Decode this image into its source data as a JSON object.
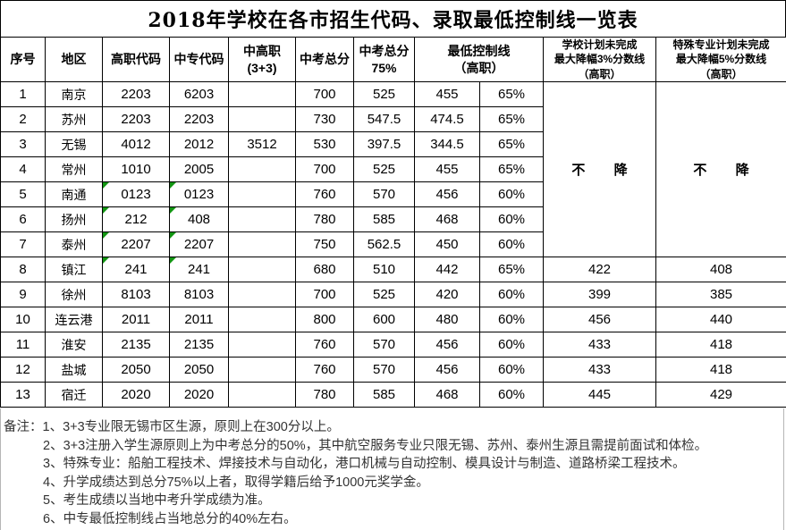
{
  "page": {
    "background": "#ffffff",
    "grid_border_color": "#000000",
    "code_flag_triangle_color": "#129612",
    "notes_text_color": "#333333"
  },
  "title": "2018年学校在各市招生代码、录取最低控制线一览表",
  "table": {
    "headers": {
      "no": "序号",
      "region": "地区",
      "gz_code": "高职代码",
      "zz_code": "中专代码",
      "zgz": "中高职\n(3+3)",
      "total": "中考总分",
      "total75": "中考总分\n75%",
      "min_line": "最低控制线\n（高职）",
      "drop3": "学校计划未完成\n最大降幅3%分数线\n（高职）",
      "drop5": "特殊专业计划未完成\n最大降幅5%分数线\n（高职）"
    },
    "merged_no_drop": {
      "row_span": 7,
      "drop3": "不 降",
      "drop5": "不 降"
    },
    "rows": [
      {
        "no": "1",
        "region": "南京",
        "gz_code": "2203",
        "zz_code": "6203",
        "zgz": "",
        "total": "700",
        "total75": "525",
        "min_line": "455",
        "min_pct": "65%",
        "drop3": "",
        "drop5": "",
        "code_marked": false
      },
      {
        "no": "2",
        "region": "苏州",
        "gz_code": "2203",
        "zz_code": "2203",
        "zgz": "",
        "total": "730",
        "total75": "547.5",
        "min_line": "474.5",
        "min_pct": "65%",
        "drop3": "",
        "drop5": "",
        "code_marked": false
      },
      {
        "no": "3",
        "region": "无锡",
        "gz_code": "4012",
        "zz_code": "2012",
        "zgz": "3512",
        "total": "530",
        "total75": "397.5",
        "min_line": "344.5",
        "min_pct": "65%",
        "drop3": "",
        "drop5": "",
        "code_marked": false
      },
      {
        "no": "4",
        "region": "常州",
        "gz_code": "1010",
        "zz_code": "2005",
        "zgz": "",
        "total": "700",
        "total75": "525",
        "min_line": "455",
        "min_pct": "65%",
        "drop3": "",
        "drop5": "",
        "code_marked": false
      },
      {
        "no": "5",
        "region": "南通",
        "gz_code": "0123",
        "zz_code": "0123",
        "zgz": "",
        "total": "760",
        "total75": "570",
        "min_line": "456",
        "min_pct": "60%",
        "drop3": "",
        "drop5": "",
        "code_marked": true
      },
      {
        "no": "6",
        "region": "扬州",
        "gz_code": "212",
        "zz_code": "408",
        "zgz": "",
        "total": "780",
        "total75": "585",
        "min_line": "468",
        "min_pct": "60%",
        "drop3": "",
        "drop5": "",
        "code_marked": true
      },
      {
        "no": "7",
        "region": "泰州",
        "gz_code": "2207",
        "zz_code": "2207",
        "zgz": "",
        "total": "750",
        "total75": "562.5",
        "min_line": "450",
        "min_pct": "60%",
        "drop3": "",
        "drop5": "",
        "code_marked": true
      },
      {
        "no": "8",
        "region": "镇江",
        "gz_code": "241",
        "zz_code": "241",
        "zgz": "",
        "total": "680",
        "total75": "510",
        "min_line": "442",
        "min_pct": "65%",
        "drop3": "422",
        "drop5": "408",
        "code_marked": true
      },
      {
        "no": "9",
        "region": "徐州",
        "gz_code": "8103",
        "zz_code": "8103",
        "zgz": "",
        "total": "700",
        "total75": "525",
        "min_line": "420",
        "min_pct": "60%",
        "drop3": "399",
        "drop5": "385",
        "code_marked": false
      },
      {
        "no": "10",
        "region": "连云港",
        "gz_code": "2011",
        "zz_code": "2011",
        "zgz": "",
        "total": "800",
        "total75": "600",
        "min_line": "480",
        "min_pct": "60%",
        "drop3": "456",
        "drop5": "440",
        "code_marked": false
      },
      {
        "no": "11",
        "region": "淮安",
        "gz_code": "2135",
        "zz_code": "2135",
        "zgz": "",
        "total": "760",
        "total75": "570",
        "min_line": "456",
        "min_pct": "60%",
        "drop3": "433",
        "drop5": "418",
        "code_marked": false
      },
      {
        "no": "12",
        "region": "盐城",
        "gz_code": "2050",
        "zz_code": "2050",
        "zgz": "",
        "total": "760",
        "total75": "570",
        "min_line": "456",
        "min_pct": "60%",
        "drop3": "433",
        "drop5": "418",
        "code_marked": false
      },
      {
        "no": "13",
        "region": "宿迁",
        "gz_code": "2020",
        "zz_code": "2020",
        "zgz": "",
        "total": "780",
        "total75": "585",
        "min_line": "468",
        "min_pct": "60%",
        "drop3": "445",
        "drop5": "429",
        "code_marked": false
      }
    ]
  },
  "notes": {
    "label": "备注：",
    "items": [
      "1、3+3专业限无锡市区生源，原则上在300分以上。",
      "2、3+3注册入学生源原则上为中考总分的50%，其中航空服务专业只限无锡、苏州、泰州生源且需提前面试和体检。",
      "3、特殊专业：船舶工程技术、焊接技术与自动化，港口机械与自动控制、模具设计与制造、道路桥梁工程技术。",
      "4、升学成绩达到总分75%以上者，取得学籍后给予1000元奖学金。",
      "5、考生成绩以当地中考升学成绩为准。",
      "6、中专最低控制线占当地总分的40%左右。"
    ]
  }
}
